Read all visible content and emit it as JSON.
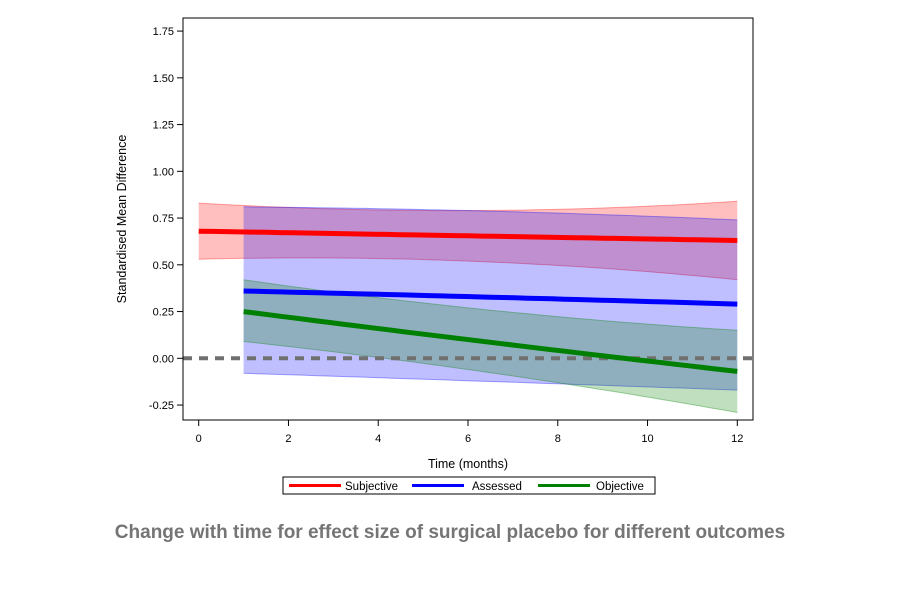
{
  "caption": "Change with time for effect size of surgical placebo for different outcomes",
  "chart_data": {
    "type": "line",
    "title": "",
    "xlabel": "Time (months)",
    "ylabel": "Standardised Mean Difference",
    "xlim": [
      0,
      12
    ],
    "ylim": [
      -0.25,
      1.75
    ],
    "xticks": [
      0,
      2,
      4,
      6,
      8,
      10,
      12
    ],
    "xtick_labels": [
      "0",
      "2",
      "4",
      "6",
      "8",
      "10",
      "12"
    ],
    "yticks": [
      -0.25,
      0,
      0.25,
      0.5,
      0.75,
      1.0,
      1.25,
      1.5,
      1.75
    ],
    "ytick_labels": [
      "-0.25",
      "0.00",
      "0.25",
      "0.50",
      "0.75",
      "1.00",
      "1.25",
      "1.50",
      "1.75"
    ],
    "grid": false,
    "legend_position": "bottom",
    "reference_line": {
      "y": 0,
      "style": "dashed",
      "color": "#707070"
    },
    "series": [
      {
        "name": "Subjective",
        "color": "#ff0000",
        "x": [
          0,
          6,
          12
        ],
        "y": [
          0.68,
          0.655,
          0.63
        ],
        "lower": [
          0.53,
          0.52,
          0.42
        ],
        "upper": [
          0.83,
          0.79,
          0.84
        ]
      },
      {
        "name": "Assessed",
        "color": "#0000ff",
        "x": [
          1,
          6,
          12
        ],
        "y": [
          0.36,
          0.33,
          0.29
        ],
        "lower": [
          -0.08,
          -0.12,
          -0.17
        ],
        "upper": [
          0.81,
          0.79,
          0.74
        ]
      },
      {
        "name": "Objective",
        "color": "#008000",
        "x": [
          1,
          6,
          12
        ],
        "y": [
          0.25,
          0.1,
          -0.07
        ],
        "lower": [
          0.09,
          -0.06,
          -0.29
        ],
        "upper": [
          0.42,
          0.27,
          0.15
        ]
      }
    ]
  }
}
